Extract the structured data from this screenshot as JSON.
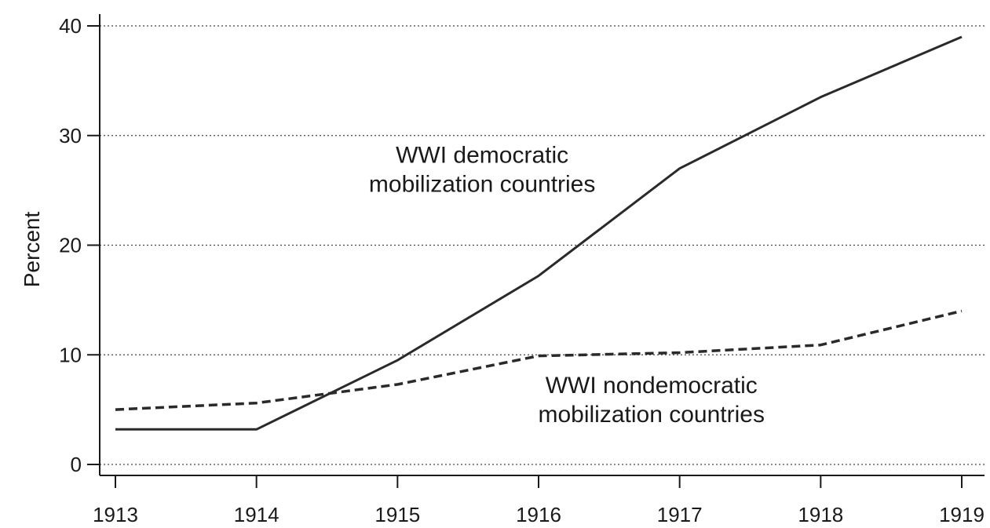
{
  "chart_data": {
    "type": "line",
    "title": "",
    "xlabel": "",
    "ylabel": "Percent",
    "x": [
      1913,
      1914,
      1915,
      1916,
      1917,
      1918,
      1919
    ],
    "xticks": [
      "1913",
      "1914",
      "1915",
      "1916",
      "1917",
      "1918",
      "1919"
    ],
    "yticks": [
      "0",
      "10",
      "20",
      "30",
      "40"
    ],
    "ylim": [
      0,
      40
    ],
    "grid": "horizontal dotted",
    "legend": "none",
    "series": [
      {
        "style": "solid",
        "color": "#2a2a2a",
        "values": [
          3.2,
          3.2,
          9.5,
          17.2,
          27.0,
          33.5,
          39.0
        ]
      },
      {
        "style": "dashed",
        "color": "#2a2a2a",
        "values": [
          5.0,
          5.6,
          7.3,
          9.9,
          10.2,
          10.9,
          14.0
        ]
      }
    ],
    "annotations": [
      {
        "series_index": 0,
        "lines": [
          "WWI democratic",
          "mobilization countries"
        ],
        "at_x": 1915.6,
        "at_y": 27.5
      },
      {
        "series_index": 1,
        "lines": [
          "WWI nondemocratic",
          "mobilization countries"
        ],
        "at_x": 1916.8,
        "at_y": 6.5
      }
    ]
  }
}
